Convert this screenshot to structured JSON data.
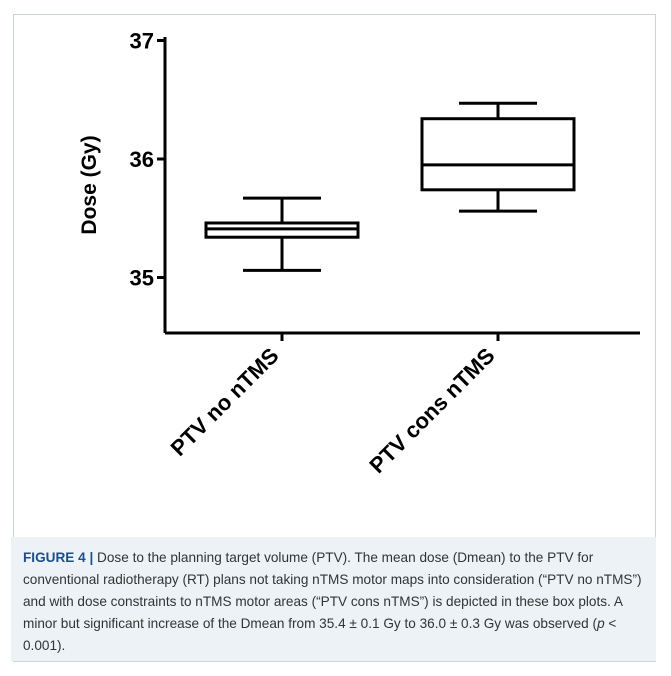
{
  "chart_data": {
    "type": "box",
    "ylabel": "Dose (Gy)",
    "ylim": [
      34.5,
      37.0
    ],
    "yticks": [
      35,
      36,
      37
    ],
    "categories": [
      "PTV no nTMS",
      "PTV cons nTMS"
    ],
    "boxes": [
      {
        "name": "PTV no nTMS",
        "min": 35.06,
        "q1": 35.34,
        "median": 35.41,
        "q3": 35.46,
        "max": 35.67
      },
      {
        "name": "PTV cons nTMS",
        "min": 35.56,
        "q1": 35.74,
        "median": 35.95,
        "q3": 36.34,
        "max": 36.47
      }
    ],
    "grid": false,
    "colors": {
      "stroke": "#000000",
      "fill": "#ffffff"
    }
  },
  "caption": {
    "label": "FIGURE 4 |",
    "text1": " Dose to the planning target volume (PTV). The mean dose (Dmean) to the PTV for conventional radiotherapy (RT) plans not taking nTMS motor maps into consideration (“PTV no nTMS”) and with dose constraints to nTMS motor areas (“PTV cons nTMS”) is depicted in these box plots. A minor but significant increase of the Dmean from 35.4 ± 0.1 Gy to 36.0 ± 0.3 Gy was observed (",
    "p_symbol": "p",
    "text2": " < 0.001)."
  },
  "colors": {
    "caption_bg": "#ecf2f6",
    "caption_label": "#1c4f8a",
    "frame_border": "#c9d5dc"
  }
}
